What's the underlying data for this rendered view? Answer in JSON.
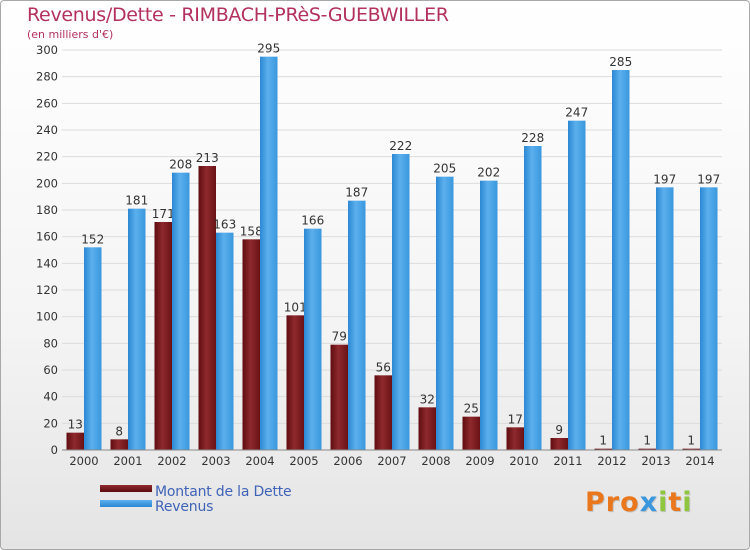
{
  "header": {
    "title": "Revenus/Dette - RIMBACH-PRèS-GUEBWILLER",
    "subtitle": "(en milliers d'€)"
  },
  "legend": {
    "debt_label": "Montant de la Dette",
    "revenue_label": "Revenus"
  },
  "brand": {
    "letters": [
      "P",
      "r",
      "o",
      "x",
      "i",
      "t",
      "i"
    ]
  },
  "colors": {
    "debt": "#7a1a1c",
    "revenue": "#3a97de",
    "title": "#b3315e",
    "legend_text": "#3f63b8",
    "brand": [
      "#e8771d",
      "#e8771d",
      "#e8771d",
      "#3a97de",
      "#8ec63f",
      "#e8771d",
      "#8ec63f"
    ]
  },
  "chart_data": {
    "type": "bar",
    "categories": [
      "2000",
      "2001",
      "2002",
      "2003",
      "2004",
      "2005",
      "2006",
      "2007",
      "2008",
      "2009",
      "2010",
      "2011",
      "2012",
      "2013",
      "2014"
    ],
    "series": [
      {
        "name": "Montant de la Dette",
        "values": [
          13,
          8,
          171,
          213,
          158,
          101,
          79,
          56,
          32,
          25,
          17,
          9,
          1,
          1,
          1
        ]
      },
      {
        "name": "Revenus",
        "values": [
          152,
          181,
          208,
          163,
          295,
          166,
          187,
          222,
          205,
          202,
          228,
          247,
          285,
          197,
          197
        ]
      }
    ],
    "value_labels": {
      "Montant de la Dette": [
        "13",
        "8",
        "171",
        "213",
        "158",
        "101",
        "79",
        "56",
        "32",
        "25",
        "17",
        "9",
        "1",
        "1",
        "1"
      ],
      "Revenus": [
        "152",
        "181",
        "208",
        "163",
        "295",
        "166",
        "187",
        "222",
        "205",
        "202",
        "228",
        "247",
        "285",
        "197",
        "197"
      ]
    },
    "ylim": [
      0,
      300
    ],
    "yticks": [
      "0",
      "20",
      "40",
      "60",
      "80",
      "100",
      "120",
      "140",
      "160",
      "180",
      "200",
      "220",
      "240",
      "260",
      "280",
      "300"
    ],
    "grid": true,
    "legend_position": "bottom-left"
  }
}
